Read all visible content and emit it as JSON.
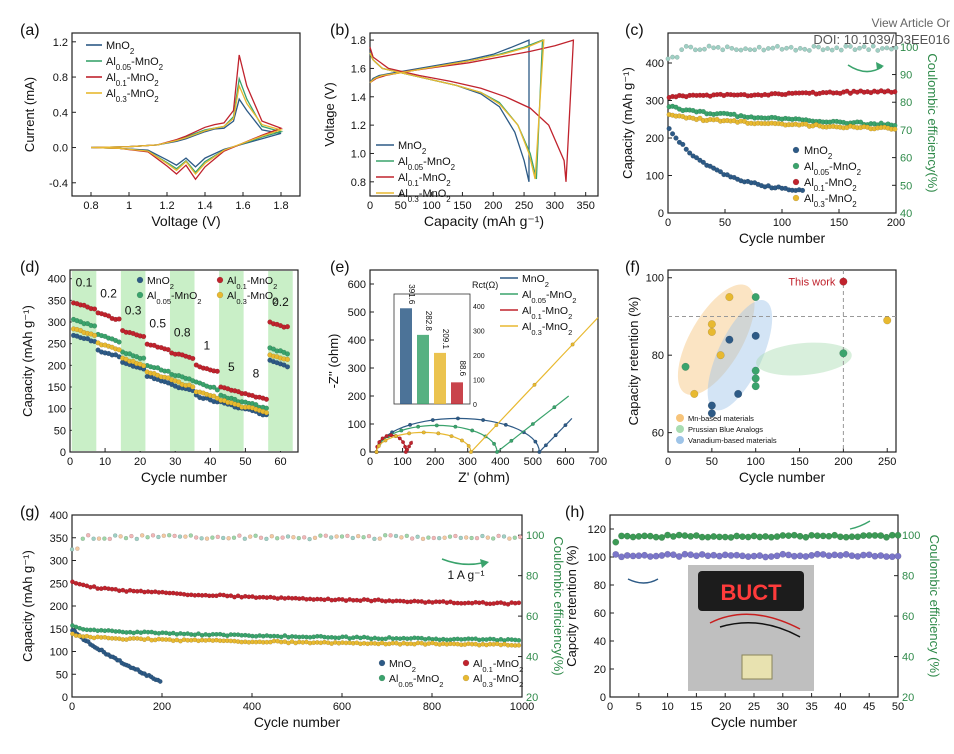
{
  "header": {
    "view_article": "View Article Or",
    "doi": "DOI: 10.1039/D3EE016"
  },
  "colors": {
    "mno2": "#2d5a86",
    "al005": "#3aa36c",
    "al01": "#c0232d",
    "al03": "#e8b930",
    "green_axis": "#2f8a4a",
    "purple": "#7b76c9",
    "band": "#c9efc7"
  },
  "chart_data": [
    {
      "panel": "(a)",
      "type": "line",
      "xlabel": "Voltage (V)",
      "ylabel": "Current (mA)",
      "xlim": [
        0.7,
        1.9
      ],
      "ylim": [
        -0.55,
        1.3
      ],
      "xticks": [
        0.8,
        1.0,
        1.2,
        1.4,
        1.6,
        1.8
      ],
      "yticks": [
        -0.4,
        0.0,
        0.4,
        0.8,
        1.2
      ],
      "legend_position": "top-left",
      "series": [
        {
          "name": "MnO2",
          "key": "mno2",
          "x": [
            0.8,
            1.0,
            1.15,
            1.25,
            1.3,
            1.35,
            1.4,
            1.45,
            1.5,
            1.55,
            1.58,
            1.62,
            1.7,
            1.8,
            1.7,
            1.5,
            1.4,
            1.35,
            1.3,
            1.25,
            1.2,
            1.1,
            0.95,
            0.8
          ],
          "y": [
            0.0,
            0.01,
            0.03,
            0.07,
            0.1,
            0.14,
            0.18,
            0.21,
            0.22,
            0.3,
            0.55,
            0.42,
            0.2,
            0.16,
            0.1,
            -0.02,
            -0.12,
            -0.22,
            -0.12,
            -0.2,
            -0.14,
            -0.03,
            -0.01,
            0.0
          ]
        },
        {
          "name": "Al0.05-MnO2",
          "key": "al005",
          "x": [
            0.8,
            1.0,
            1.15,
            1.25,
            1.3,
            1.35,
            1.4,
            1.45,
            1.5,
            1.55,
            1.58,
            1.62,
            1.7,
            1.8,
            1.7,
            1.5,
            1.4,
            1.35,
            1.3,
            1.25,
            1.2,
            1.1,
            0.95,
            0.8
          ],
          "y": [
            0.0,
            0.01,
            0.03,
            0.08,
            0.12,
            0.16,
            0.2,
            0.22,
            0.24,
            0.35,
            0.78,
            0.55,
            0.24,
            0.18,
            0.12,
            -0.03,
            -0.16,
            -0.28,
            -0.15,
            -0.24,
            -0.17,
            -0.04,
            -0.01,
            0.0
          ]
        },
        {
          "name": "Al0.1-MnO2",
          "key": "al01",
          "x": [
            0.8,
            1.0,
            1.15,
            1.25,
            1.3,
            1.35,
            1.4,
            1.45,
            1.5,
            1.55,
            1.58,
            1.62,
            1.7,
            1.8,
            1.7,
            1.5,
            1.4,
            1.35,
            1.3,
            1.25,
            1.2,
            1.1,
            0.95,
            0.8
          ],
          "y": [
            0.0,
            0.01,
            0.03,
            0.09,
            0.13,
            0.18,
            0.23,
            0.26,
            0.28,
            0.42,
            1.05,
            0.7,
            0.3,
            0.22,
            0.14,
            -0.04,
            -0.22,
            -0.36,
            -0.2,
            -0.3,
            -0.21,
            -0.05,
            -0.01,
            0.0
          ]
        },
        {
          "name": "Al0.3-MnO2",
          "key": "al03",
          "x": [
            0.8,
            1.0,
            1.15,
            1.25,
            1.3,
            1.35,
            1.4,
            1.45,
            1.5,
            1.55,
            1.58,
            1.62,
            1.7,
            1.8,
            1.7,
            1.5,
            1.4,
            1.35,
            1.3,
            1.25,
            1.2,
            1.1,
            0.95,
            0.8
          ],
          "y": [
            0.0,
            0.01,
            0.03,
            0.08,
            0.11,
            0.15,
            0.19,
            0.22,
            0.24,
            0.33,
            0.7,
            0.5,
            0.26,
            0.2,
            0.13,
            -0.03,
            -0.18,
            -0.3,
            -0.16,
            -0.26,
            -0.18,
            -0.04,
            -0.01,
            0.0
          ]
        }
      ]
    },
    {
      "panel": "(b)",
      "type": "line",
      "xlabel": "Capacity (mAh g⁻¹)",
      "ylabel": "Voltage (V)",
      "xlim": [
        0,
        370
      ],
      "ylim": [
        0.7,
        1.85
      ],
      "xticks": [
        0,
        50,
        100,
        150,
        200,
        250,
        300,
        350
      ],
      "yticks": [
        0.8,
        1.0,
        1.2,
        1.4,
        1.6,
        1.8
      ],
      "legend_position": "bottom-left",
      "series": [
        {
          "name": "MnO2",
          "key": "mno2",
          "x": [
            0,
            5,
            20,
            60,
            100,
            140,
            180,
            210,
            235,
            250,
            258,
            258,
            230,
            200,
            160,
            120,
            80,
            40,
            15,
            5,
            0
          ],
          "y": [
            1.72,
            1.66,
            1.6,
            1.56,
            1.52,
            1.48,
            1.42,
            1.33,
            1.15,
            0.95,
            0.8,
            1.8,
            1.75,
            1.7,
            1.66,
            1.63,
            1.6,
            1.57,
            1.55,
            1.53,
            1.5
          ]
        },
        {
          "name": "Al0.05-MnO2",
          "key": "al005",
          "x": [
            0,
            5,
            20,
            60,
            100,
            140,
            180,
            210,
            240,
            260,
            270,
            280,
            250,
            210,
            170,
            130,
            90,
            50,
            20,
            8,
            0
          ],
          "y": [
            1.7,
            1.66,
            1.6,
            1.56,
            1.52,
            1.48,
            1.43,
            1.36,
            1.2,
            1.0,
            0.82,
            1.8,
            1.75,
            1.7,
            1.66,
            1.63,
            1.6,
            1.57,
            1.55,
            1.53,
            1.5
          ]
        },
        {
          "name": "Al0.1-MnO2",
          "key": "al01",
          "x": [
            0,
            5,
            30,
            80,
            130,
            180,
            220,
            260,
            290,
            305,
            315,
            318,
            330,
            300,
            260,
            210,
            160,
            110,
            60,
            25,
            10,
            0
          ],
          "y": [
            1.75,
            1.68,
            1.6,
            1.55,
            1.51,
            1.46,
            1.4,
            1.32,
            1.2,
            1.05,
            0.95,
            0.8,
            1.8,
            1.76,
            1.72,
            1.68,
            1.64,
            1.61,
            1.58,
            1.55,
            1.53,
            1.5
          ]
        },
        {
          "name": "Al0.3-MnO2",
          "key": "al03",
          "x": [
            0,
            5,
            20,
            60,
            100,
            140,
            180,
            210,
            240,
            258,
            268,
            282,
            255,
            215,
            170,
            130,
            90,
            50,
            20,
            8,
            0
          ],
          "y": [
            1.71,
            1.66,
            1.6,
            1.56,
            1.52,
            1.48,
            1.43,
            1.35,
            1.2,
            1.0,
            0.82,
            1.8,
            1.75,
            1.7,
            1.66,
            1.63,
            1.6,
            1.57,
            1.55,
            1.53,
            1.5
          ]
        }
      ]
    },
    {
      "panel": "(c)",
      "type": "scatter",
      "xlabel": "Cycle number",
      "ylabel": "Capacity (mAh g⁻¹)",
      "y2label": "Coulombic efficiency(%)",
      "xlim": [
        0,
        200
      ],
      "ylim": [
        0,
        480
      ],
      "y2lim": [
        40,
        105
      ],
      "xticks": [
        0,
        50,
        100,
        150,
        200
      ],
      "yticks": [
        0,
        100,
        200,
        300,
        400
      ],
      "y2ticks": [
        40,
        50,
        60,
        70,
        80,
        90,
        100
      ],
      "legend_position": "bottom-right",
      "series": [
        {
          "name": "MnO2",
          "key": "mno2",
          "start": 230,
          "end": 60,
          "shape": "decay",
          "xmax": 120
        },
        {
          "name": "Al0.05-MnO2",
          "key": "al005",
          "start": 290,
          "end": 235,
          "shape": "slow",
          "xmax": 200
        },
        {
          "name": "Al0.1-MnO2",
          "key": "al01",
          "start": 310,
          "end": 325,
          "shape": "flat",
          "xmax": 200
        },
        {
          "name": "Al0.3-MnO2",
          "key": "al03",
          "start": 265,
          "end": 225,
          "shape": "slow",
          "xmax": 200
        }
      ],
      "ce": {
        "value": 99.5,
        "xmax": 200
      }
    },
    {
      "panel": "(d)",
      "type": "scatter",
      "xlabel": "Cycle number",
      "ylabel": "Capacity (mAh g⁻¹)",
      "xlim": [
        0,
        65
      ],
      "ylim": [
        0,
        420
      ],
      "xticks": [
        0,
        10,
        20,
        30,
        40,
        50,
        60
      ],
      "yticks": [
        0,
        50,
        100,
        150,
        200,
        250,
        300,
        350,
        400
      ],
      "legend_position": "top-right",
      "rates": [
        "0.1",
        "0.2",
        "0.3",
        "0.5",
        "0.8",
        "1",
        "5",
        "8",
        "0.2"
      ],
      "rate_levels": {
        "mno2": [
          270,
          235,
          205,
          175,
          155,
          130,
          115,
          100,
          210
        ],
        "al005": [
          305,
          270,
          230,
          200,
          180,
          160,
          130,
          115,
          240
        ],
        "al01": [
          345,
          320,
          280,
          250,
          230,
          200,
          150,
          135,
          300
        ],
        "al03": [
          285,
          250,
          215,
          185,
          165,
          140,
          120,
          105,
          225
        ]
      },
      "series": [
        {
          "name": "MnO2",
          "key": "mno2"
        },
        {
          "name": "Al0.1-MnO2",
          "key": "al01"
        },
        {
          "name": "Al0.05-MnO2",
          "key": "al005"
        },
        {
          "name": "Al0.3-MnO2",
          "key": "al03"
        }
      ]
    },
    {
      "panel": "(e)",
      "type": "line",
      "xlabel": "Z' (ohm)",
      "ylabel": "-Z'' (ohm)",
      "xlim": [
        0,
        700
      ],
      "ylim": [
        0,
        650
      ],
      "xticks": [
        0,
        100,
        200,
        300,
        400,
        500,
        600,
        700
      ],
      "yticks": [
        0,
        100,
        200,
        300,
        400,
        500,
        600
      ],
      "legend_position": "top-right",
      "series": [
        {
          "name": "MnO2",
          "key": "mno2",
          "semi_end": 520,
          "semi_h": 120,
          "tail_end": [
            620,
            120
          ]
        },
        {
          "name": "Al0.05-MnO2",
          "key": "al005",
          "semi_end": 390,
          "semi_h": 95,
          "tail_end": [
            610,
            200
          ]
        },
        {
          "name": "Al0.1-MnO2",
          "key": "al01",
          "semi_end": 110,
          "semi_h": 60,
          "tail_end": [
            130,
            40
          ]
        },
        {
          "name": "Al0.3-MnO2",
          "key": "al03",
          "semi_end": 310,
          "semi_h": 70,
          "tail_end": [
            700,
            480
          ]
        }
      ],
      "inset": {
        "ylabel": "Rct(Ω)",
        "ylim": [
          0,
          450
        ],
        "yticks": [
          0,
          100,
          200,
          300,
          400
        ],
        "bars": [
          {
            "key": "mno2",
            "value": 391.6,
            "label": "391.6"
          },
          {
            "key": "al005",
            "value": 282.8,
            "label": "282.8"
          },
          {
            "key": "al03",
            "value": 209.1,
            "label": "209.1"
          },
          {
            "key": "al01",
            "value": 88.6,
            "label": "88.6"
          }
        ]
      }
    },
    {
      "panel": "(f)",
      "type": "scatter",
      "xlabel": "Cycle number",
      "ylabel": "Capacity retention (%)",
      "xlim": [
        0,
        260
      ],
      "ylim": [
        55,
        102
      ],
      "xticks": [
        0,
        50,
        100,
        150,
        200,
        250
      ],
      "yticks": [
        60,
        80,
        100
      ],
      "legend_position": "bottom-left",
      "legend": [
        "Mn-based materials",
        "Prussian Blue Analogs",
        "Vanadium-based materials"
      ],
      "annotation": "This work",
      "points": [
        {
          "x": 200,
          "y": 99,
          "key": "al01"
        },
        {
          "x": 250,
          "y": 89,
          "key": "al03"
        },
        {
          "x": 200,
          "y": 80.5,
          "key": "al005"
        },
        {
          "x": 50,
          "y": 88,
          "key": "al03"
        },
        {
          "x": 50,
          "y": 86,
          "key": "al03"
        },
        {
          "x": 70,
          "y": 95,
          "key": "al03"
        },
        {
          "x": 30,
          "y": 70,
          "key": "al03"
        },
        {
          "x": 60,
          "y": 80,
          "key": "al03"
        },
        {
          "x": 100,
          "y": 85,
          "key": "mno2"
        },
        {
          "x": 70,
          "y": 84,
          "key": "mno2"
        },
        {
          "x": 50,
          "y": 67,
          "key": "mno2"
        },
        {
          "x": 50,
          "y": 65,
          "key": "mno2"
        },
        {
          "x": 80,
          "y": 70,
          "key": "mno2"
        },
        {
          "x": 100,
          "y": 95,
          "key": "al005"
        },
        {
          "x": 100,
          "y": 76,
          "key": "al005"
        },
        {
          "x": 100,
          "y": 74,
          "key": "al005"
        },
        {
          "x": 100,
          "y": 72,
          "key": "al005"
        },
        {
          "x": 20,
          "y": 77,
          "key": "al005"
        }
      ]
    },
    {
      "panel": "(g)",
      "type": "scatter",
      "xlabel": "Cycle number",
      "ylabel": "Capacity (mAh g⁻¹)",
      "y2label": "Coulombic efficiency(%)",
      "xlim": [
        0,
        1000
      ],
      "ylim": [
        0,
        400
      ],
      "y2lim": [
        20,
        110
      ],
      "xticks": [
        0,
        200,
        400,
        600,
        800,
        1000
      ],
      "yticks": [
        0,
        50,
        100,
        150,
        200,
        250,
        300,
        350,
        400
      ],
      "y2ticks": [
        20,
        40,
        60,
        80,
        100
      ],
      "legend_position": "bottom-center",
      "annotation": "1 A g⁻¹",
      "series": [
        {
          "name": "MnO2",
          "key": "mno2",
          "start": 150,
          "end": 32,
          "xmax": 200
        },
        {
          "name": "Al0.1-MnO2",
          "key": "al01",
          "start": 260,
          "end": 205,
          "xmax": 1000
        },
        {
          "name": "Al0.05-MnO2",
          "key": "al005",
          "start": 160,
          "end": 125,
          "xmax": 1000
        },
        {
          "name": "Al0.3-MnO2",
          "key": "al03",
          "start": 140,
          "end": 115,
          "xmax": 1000
        }
      ],
      "ce": {
        "value": 99,
        "xmax": 1000
      }
    },
    {
      "panel": "(h)",
      "type": "scatter",
      "xlabel": "Cycle number",
      "ylabel": "Capcity retention (%)",
      "y2label": "Coulombic efficiency (%)",
      "xlim": [
        0,
        50
      ],
      "ylim": [
        0,
        130
      ],
      "y2lim": [
        20,
        110
      ],
      "xticks": [
        0,
        5,
        10,
        15,
        20,
        25,
        30,
        35,
        40,
        45,
        50
      ],
      "yticks": [
        0,
        20,
        40,
        60,
        80,
        100,
        120
      ],
      "y2ticks": [
        20,
        40,
        60,
        80,
        100
      ],
      "retention": 101,
      "ce": 99.5,
      "photo_text": "BUCT"
    }
  ]
}
